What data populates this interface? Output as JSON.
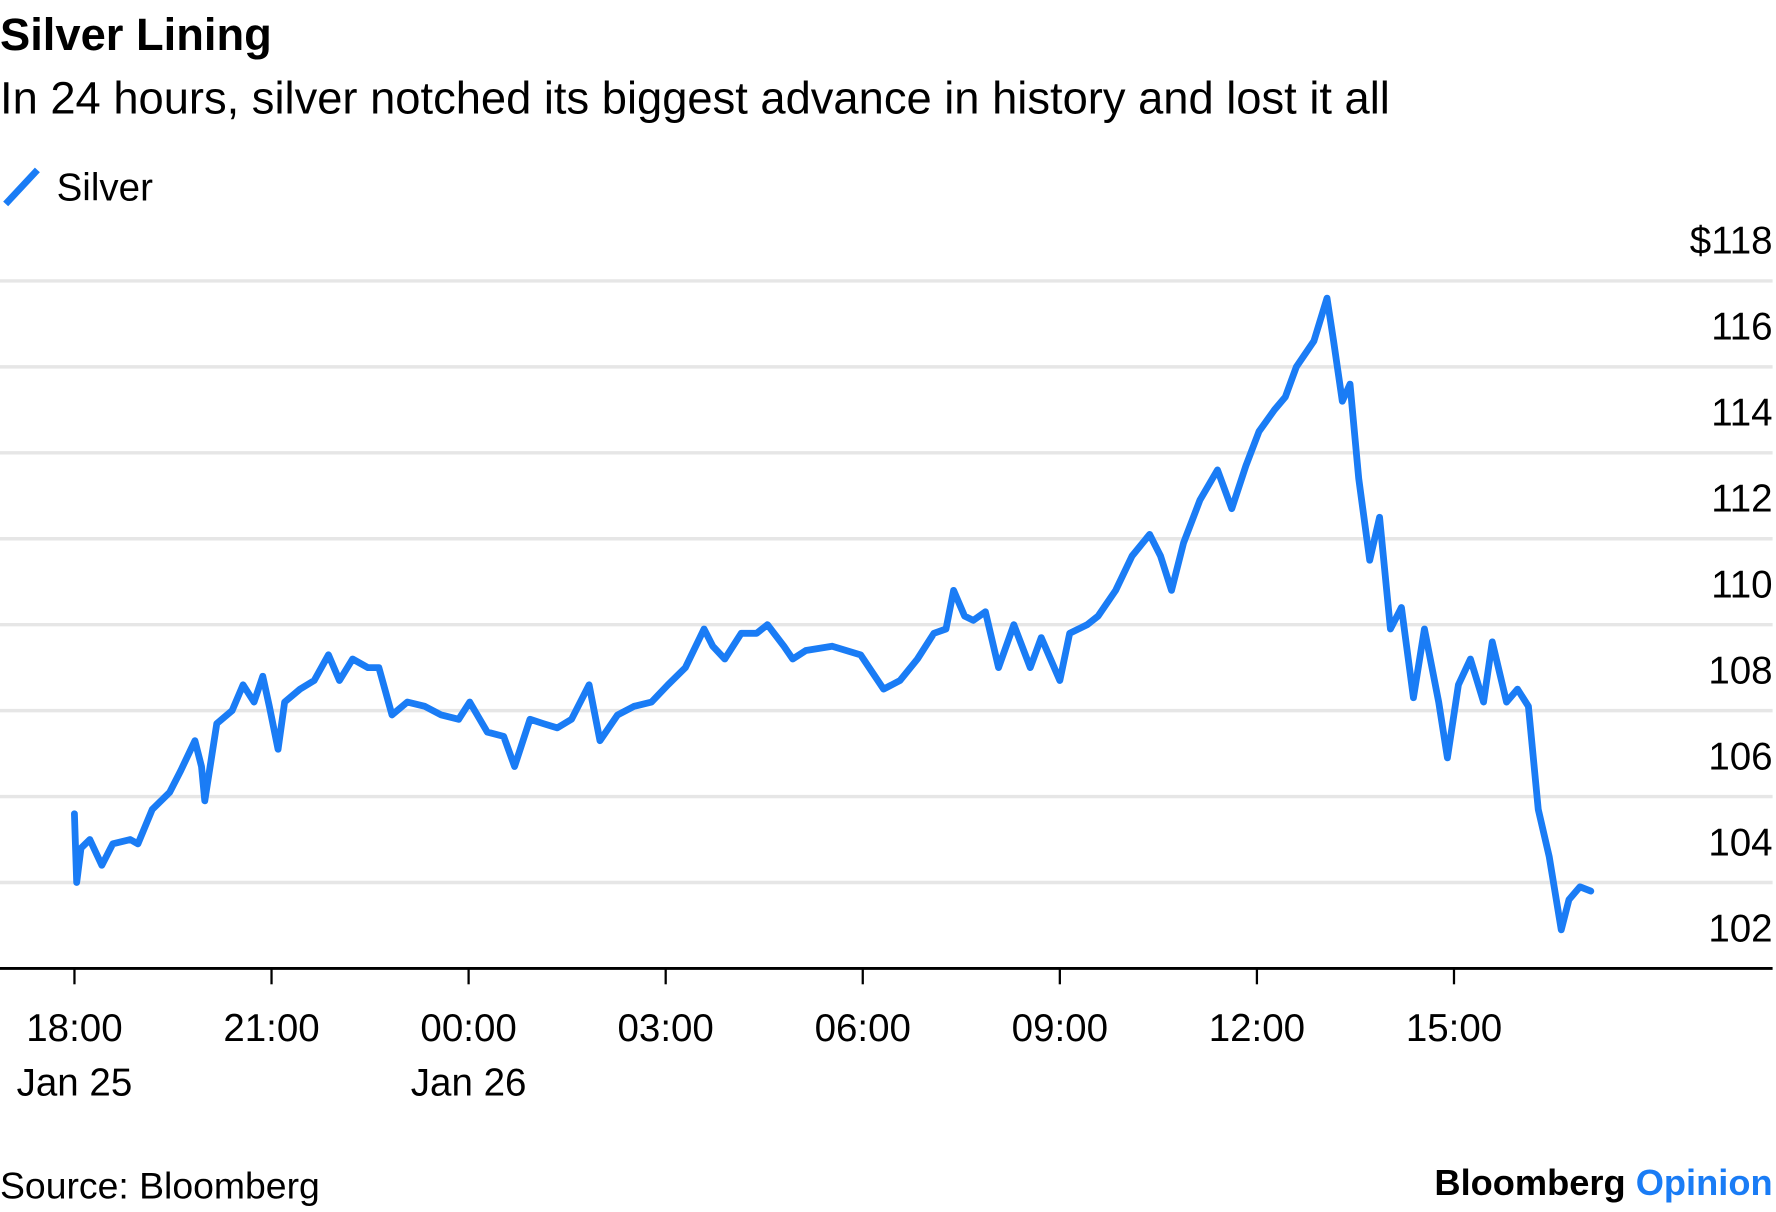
{
  "chart_data": {
    "type": "line",
    "title": "Silver Lining",
    "subtitle": "In 24 hours, silver notched its biggest advance in history and lost it all",
    "source": "Source: Bloomberg",
    "logo": {
      "name": "Bloomberg",
      "suffix": "Opinion"
    },
    "legend": "top-left",
    "grid": true,
    "x": [
      "Jan 25 18:00",
      "Jan 25 18:02",
      "Jan 25 18:06",
      "Jan 25 18:14",
      "Jan 25 18:25",
      "Jan 25 18:35",
      "Jan 25 18:51",
      "Jan 25 18:58",
      "Jan 25 19:11",
      "Jan 25 19:27",
      "Jan 25 19:37",
      "Jan 25 19:50",
      "Jan 25 19:56",
      "Jan 25 19:59",
      "Jan 25 20:10",
      "Jan 25 20:24",
      "Jan 25 20:34",
      "Jan 25 20:44",
      "Jan 25 20:52",
      "Jan 25 20:58",
      "Jan 25 21:06",
      "Jan 25 21:12",
      "Jan 25 21:26",
      "Jan 25 21:39",
      "Jan 25 21:52",
      "Jan 25 22:02",
      "Jan 25 22:14",
      "Jan 25 22:28",
      "Jan 25 22:38",
      "Jan 25 22:50",
      "Jan 25 23:04",
      "Jan 25 23:20",
      "Jan 25 23:35",
      "Jan 25 23:51",
      "Jan 26 00:01",
      "Jan 26 00:17",
      "Jan 26 00:32",
      "Jan 26 00:42",
      "Jan 26 00:56",
      "Jan 26 01:08",
      "Jan 26 01:21",
      "Jan 26 01:34",
      "Jan 26 01:50",
      "Jan 26 02:00",
      "Jan 26 02:16",
      "Jan 26 02:31",
      "Jan 26 02:47",
      "Jan 26 03:02",
      "Jan 26 03:18",
      "Jan 26 03:35",
      "Jan 26 03:43",
      "Jan 26 03:54",
      "Jan 26 04:09",
      "Jan 26 04:23",
      "Jan 26 04:33",
      "Jan 26 04:48",
      "Jan 26 04:56",
      "Jan 26 05:08",
      "Jan 26 05:32",
      "Jan 26 05:58",
      "Jan 26 06:19",
      "Jan 26 06:34",
      "Jan 26 06:50",
      "Jan 26 07:05",
      "Jan 26 07:16",
      "Jan 26 07:23",
      "Jan 26 07:33",
      "Jan 26 07:41",
      "Jan 26 07:52",
      "Jan 26 08:04",
      "Jan 26 08:18",
      "Jan 26 08:33",
      "Jan 26 08:43",
      "Jan 26 09:00",
      "Jan 26 09:09",
      "Jan 26 09:25",
      "Jan 26 09:35",
      "Jan 26 09:51",
      "Jan 26 10:06",
      "Jan 26 10:22",
      "Jan 26 10:32",
      "Jan 26 10:42",
      "Jan 26 10:53",
      "Jan 26 11:08",
      "Jan 26 11:24",
      "Jan 26 11:37",
      "Jan 26 11:50",
      "Jan 26 12:02",
      "Jan 26 12:16",
      "Jan 26 12:26",
      "Jan 26 12:36",
      "Jan 26 12:52",
      "Jan 26 13:04",
      "Jan 26 13:10",
      "Jan 26 13:18",
      "Jan 26 13:25",
      "Jan 26 13:33",
      "Jan 26 13:43",
      "Jan 26 13:52",
      "Jan 26 14:02",
      "Jan 26 14:12",
      "Jan 26 14:23",
      "Jan 26 14:33",
      "Jan 26 14:46",
      "Jan 26 14:54",
      "Jan 26 15:04",
      "Jan 26 15:15",
      "Jan 26 15:27",
      "Jan 26 15:35",
      "Jan 26 15:48",
      "Jan 26 15:58",
      "Jan 26 16:08",
      "Jan 26 16:17",
      "Jan 26 16:27",
      "Jan 26 16:38",
      "Jan 26 16:45",
      "Jan 26 16:55",
      "Jan 26 17:05"
    ],
    "series": [
      {
        "name": "Silver",
        "color": "#1a7cf5",
        "values": [
          105.6,
          104.0,
          104.8,
          105.0,
          104.4,
          104.9,
          105.0,
          104.9,
          105.7,
          106.1,
          106.6,
          107.3,
          106.7,
          105.9,
          107.7,
          108.0,
          108.6,
          108.2,
          108.8,
          108.1,
          107.1,
          108.2,
          108.5,
          108.7,
          109.3,
          108.7,
          109.2,
          109.0,
          109.0,
          107.9,
          108.2,
          108.1,
          107.9,
          107.8,
          108.2,
          107.5,
          107.4,
          106.7,
          107.8,
          107.7,
          107.6,
          107.8,
          108.6,
          107.3,
          107.9,
          108.1,
          108.2,
          108.6,
          109.0,
          109.9,
          109.5,
          109.2,
          109.8,
          109.8,
          110.0,
          109.5,
          109.2,
          109.4,
          109.5,
          109.3,
          108.5,
          108.7,
          109.2,
          109.8,
          109.9,
          110.8,
          110.2,
          110.1,
          110.3,
          109.0,
          110.0,
          109.0,
          109.7,
          108.7,
          109.8,
          110.0,
          110.2,
          110.8,
          111.6,
          112.1,
          111.6,
          110.8,
          111.9,
          112.9,
          113.6,
          112.7,
          113.7,
          114.5,
          115.0,
          115.3,
          116.0,
          116.6,
          117.6,
          116.6,
          115.2,
          115.6,
          113.4,
          111.5,
          112.5,
          109.9,
          110.4,
          108.3,
          109.9,
          108.2,
          106.9,
          108.6,
          109.2,
          108.2,
          109.6,
          108.2,
          108.5,
          108.1,
          105.7,
          104.6,
          102.9,
          103.6,
          103.9,
          103.8
        ]
      }
    ],
    "xlim": [
      "Jan 25 16:52",
      "Jan 26 19:51"
    ],
    "xticks": [
      {
        "value": "Jan 25 18:00",
        "label": "18:00",
        "date": "Jan 25"
      },
      {
        "value": "Jan 25 21:00",
        "label": "21:00"
      },
      {
        "value": "Jan 26 00:00",
        "label": "00:00",
        "date": "Jan 26"
      },
      {
        "value": "Jan 26 03:00",
        "label": "03:00"
      },
      {
        "value": "Jan 26 06:00",
        "label": "06:00"
      },
      {
        "value": "Jan 26 09:00",
        "label": "09:00"
      },
      {
        "value": "Jan 26 12:00",
        "label": "12:00"
      },
      {
        "value": "Jan 26 15:00",
        "label": "15:00"
      }
    ],
    "ylim": [
      102,
      118
    ],
    "yticks": [
      {
        "value": 118,
        "label": "$118"
      },
      116,
      114,
      112,
      110,
      108,
      106,
      104,
      102
    ]
  }
}
